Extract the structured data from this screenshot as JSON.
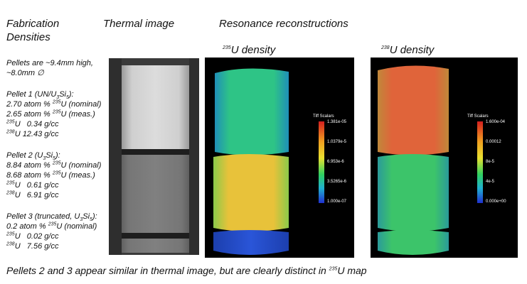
{
  "headings": {
    "fabrication_line1": "Fabrication",
    "fabrication_line2": "Densities",
    "thermal": "Thermal image",
    "resonance": "Resonance reconstructions"
  },
  "panel_titles": {
    "u235_iso": "235",
    "u235_text": "U density",
    "u238_iso": "238",
    "u238_text": "U density"
  },
  "pellet_info": {
    "dims_line1": "Pellets are ~9.4mm high,",
    "dims_line2": "~8.0mm ∅"
  },
  "pellets": [
    {
      "title_pre": "Pellet 1 (UN/U",
      "title_sub1": "3",
      "title_mid": "Si",
      "title_sub2": "5",
      "title_post": "):",
      "line1_pre": "2.70 atom % ",
      "line1_iso": "235",
      "line1_post": "U (nominal)",
      "line2_pre": "2.65 atom % ",
      "line2_iso": "235",
      "line2_post": "U (meas.)",
      "d1_iso": "235",
      "d1_text": "U   0.34 g/cc",
      "d2_iso": "238",
      "d2_text": "U 12.43 g/cc"
    },
    {
      "title_pre": "Pellet 2 (U",
      "title_sub1": "3",
      "title_mid": "Si",
      "title_sub2": "5",
      "title_post": "):",
      "line1_pre": "8.84 atom % ",
      "line1_iso": "235",
      "line1_post": "U (nominal)",
      "line2_pre": "8.68 atom % ",
      "line2_iso": "235",
      "line2_post": "U (meas.)",
      "d1_iso": "235",
      "d1_text": "U   0.61 g/cc",
      "d2_iso": "238",
      "d2_text": "U   6.91 g/cc"
    },
    {
      "title_pre": "Pellet 3 (truncated, U",
      "title_sub1": "3",
      "title_mid": "Si",
      "title_sub2": "5",
      "title_post": "):",
      "line1_pre": "0.2 atom % ",
      "line1_iso": "235",
      "line1_post": "U (nominal)",
      "d1_iso": "235",
      "d1_text": "U   0.02 g/cc",
      "d2_iso": "238",
      "d2_text": "U   7.56 g/cc"
    }
  ],
  "colorbar_235": {
    "title": "Tiff Scalars",
    "ticks": [
      "1.381e-05",
      "1.0379e-5",
      "6.953e-6",
      "3.5265e-6",
      "1.000e-07"
    ]
  },
  "colorbar_238": {
    "title": "Tiff Scalars",
    "ticks": [
      "1.600e-04",
      "0.00012",
      "8e-5",
      "4e-5",
      "0.000e+00"
    ]
  },
  "caption": {
    "pre": "Pellets 2 and 3 appear similar in thermal image, but are clearly distinct in ",
    "iso": "235",
    "post": "U map"
  },
  "colors": {
    "thermal_bg": "#2a2a2a",
    "render_bg": "#000000",
    "u235_top": "#2ec486",
    "u235_mid": "#e8c23a",
    "u235_bot": "#2a55d8",
    "u238_top": "#e0643a",
    "u238_mid": "#3cc46a"
  }
}
